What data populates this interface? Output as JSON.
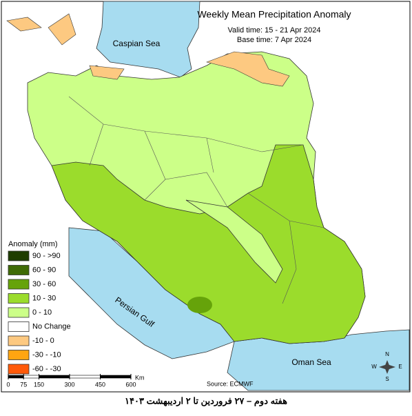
{
  "header": {
    "title": "Weekly Mean Precipitation Anomaly",
    "valid_time": "Valid time: 15 - 21 Apr 2024",
    "base_time": "Base time: 7 Apr 2024"
  },
  "labels": {
    "caspian": "Caspian Sea",
    "gulf": "Persian Gulf",
    "oman": "Oman Sea"
  },
  "legend": {
    "title": "Anomaly (mm)",
    "items": [
      {
        "label": "90 - >90",
        "color": "#1f3d00"
      },
      {
        "label": "60 - 90",
        "color": "#3f6b06"
      },
      {
        "label": "30 - 60",
        "color": "#66a30a"
      },
      {
        "label": "10 - 30",
        "color": "#9bdc2c"
      },
      {
        "label": "0 - 10",
        "color": "#ccff88"
      },
      {
        "label": "No Change",
        "color": "#ffffff"
      },
      {
        "label": "-10 - 0",
        "color": "#fdc981"
      },
      {
        "label": "-30 - -10",
        "color": "#ffa511"
      },
      {
        "label": "-60 - -30",
        "color": "#ff5a0a"
      }
    ]
  },
  "scale": {
    "ticks": [
      0,
      75,
      150,
      300,
      450,
      600
    ],
    "unit": "Km"
  },
  "compass": {
    "n": "N",
    "s": "S",
    "e": "E",
    "w": "W"
  },
  "source": "Source: ECMWF",
  "caption": "هفته دوم – ۲۷ فروردین تا ۲ اردیبهشت ۱۴۰۳"
}
